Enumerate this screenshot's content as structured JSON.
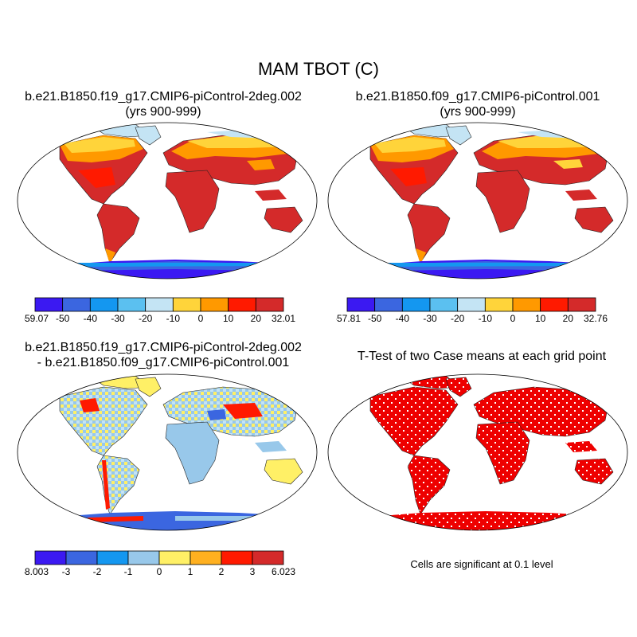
{
  "figure": {
    "title": "MAM TBOT (C)",
    "panels": [
      {
        "title_line1": "b.e21.B1850.f19_g17.CMIP6-piControl-2deg.002",
        "title_line2": "(yrs 900-999)",
        "colorbar": {
          "labels": [
            "-59.07",
            "-50",
            "-40",
            "-30",
            "-20",
            "-10",
            "0",
            "10",
            "20",
            "32.01"
          ],
          "colors": [
            "#3b19f2",
            "#3b66e0",
            "#1497f0",
            "#5bc0f0",
            "#c4e4f4",
            "#ffd43a",
            "#ff9900",
            "#ff1a00",
            "#d42a2a"
          ]
        }
      },
      {
        "title_line1": "b.e21.B1850.f09_g17.CMIP6-piControl.001",
        "title_line2": "(yrs 900-999)",
        "colorbar": {
          "labels": [
            "-57.81",
            "-50",
            "-40",
            "-30",
            "-20",
            "-10",
            "0",
            "10",
            "20",
            "32.76"
          ],
          "colors": [
            "#3b19f2",
            "#3b66e0",
            "#1497f0",
            "#5bc0f0",
            "#c4e4f4",
            "#ffd43a",
            "#ff9900",
            "#ff1a00",
            "#d42a2a"
          ]
        }
      },
      {
        "title_line1": "b.e21.B1850.f19_g17.CMIP6-piControl-2deg.002",
        "title_line2": "- b.e21.B1850.f09_g17.CMIP6-piControl.001",
        "colorbar": {
          "labels": [
            "-8.003",
            "-3",
            "-2",
            "-1",
            "0",
            "1",
            "2",
            "3",
            "6.023"
          ],
          "colors": [
            "#3b19f2",
            "#3b66e0",
            "#1497f0",
            "#98c8ea",
            "#fff066",
            "#ffb020",
            "#ff1a00",
            "#d42a2a"
          ]
        }
      },
      {
        "title_line1": "T-Test of two Case means at each grid point",
        "note": "Cells are significant at 0.1 level",
        "color": "#ee0000"
      }
    ]
  }
}
